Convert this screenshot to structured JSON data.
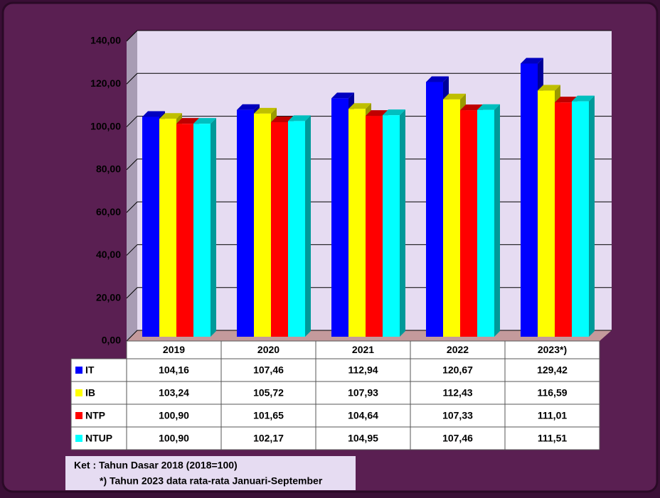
{
  "chart_data": {
    "type": "bar3d",
    "categories": [
      "2019",
      "2020",
      "2021",
      "2022",
      "2023*)"
    ],
    "series": [
      {
        "name": "IT",
        "color": "#0000ff",
        "values": [
          104.16,
          107.46,
          112.94,
          120.67,
          129.42
        ],
        "value_labels": [
          "104,16",
          "107,46",
          "112,94",
          "120,67",
          "129,42"
        ]
      },
      {
        "name": "IB",
        "color": "#ffff00",
        "values": [
          103.24,
          105.72,
          107.93,
          112.43,
          116.59
        ],
        "value_labels": [
          "103,24",
          "105,72",
          "107,93",
          "112,43",
          "116,59"
        ]
      },
      {
        "name": "NTP",
        "color": "#ff0000",
        "values": [
          100.9,
          101.65,
          104.64,
          107.33,
          111.01
        ],
        "value_labels": [
          "100,90",
          "101,65",
          "104,64",
          "107,33",
          "111,01"
        ]
      },
      {
        "name": "NTUP",
        "color": "#00ffff",
        "values": [
          100.9,
          102.17,
          104.95,
          107.46,
          111.51
        ],
        "value_labels": [
          "100,90",
          "102,17",
          "104,95",
          "107,46",
          "111,51"
        ]
      }
    ],
    "ylim": [
      0,
      140
    ],
    "yticks": [
      {
        "value": 0,
        "label": "0,00"
      },
      {
        "value": 20,
        "label": "20,00"
      },
      {
        "value": 40,
        "label": "40,00"
      },
      {
        "value": 60,
        "label": "60,00"
      },
      {
        "value": 80,
        "label": "80,00"
      },
      {
        "value": 100,
        "label": "100,00"
      },
      {
        "value": 120,
        "label": "120,00"
      },
      {
        "value": 140,
        "label": "140,00"
      }
    ],
    "grid": true,
    "data_table": true,
    "notes": [
      "Ket : Tahun Dasar 2018 (2018=100)",
      "*) Tahun 2023 data rata-rata Januari-September"
    ]
  }
}
